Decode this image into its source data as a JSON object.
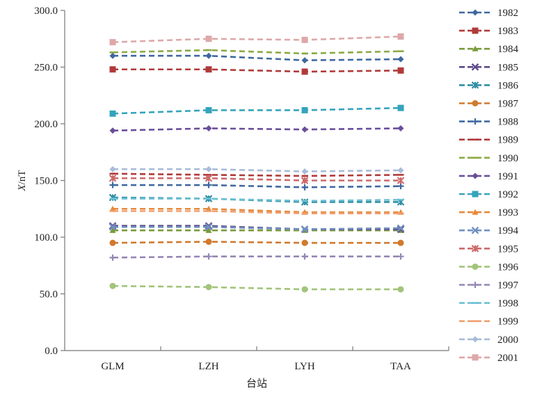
{
  "chart_data": {
    "type": "line",
    "title": "",
    "categories": [
      "GLM",
      "LZH",
      "LYH",
      "TAA"
    ],
    "xlabel": "台站",
    "ylabel_italic": "X",
    "ylabel_rest": "/nT",
    "ylim": [
      0,
      300
    ],
    "yticks": [
      0,
      50,
      100,
      150,
      200,
      250,
      300
    ],
    "ytick_labels": [
      "0.0",
      "50.0",
      "100.0",
      "150.0",
      "200.0",
      "250.0",
      "300.0"
    ],
    "legend_position": "right",
    "series": [
      {
        "name": "1982",
        "color": "#3f68a0",
        "marker": "diamond",
        "values": [
          260,
          260,
          256,
          257
        ]
      },
      {
        "name": "1983",
        "color": "#b03a3a",
        "marker": "square",
        "values": [
          248,
          248,
          246,
          247
        ]
      },
      {
        "name": "1984",
        "color": "#7a9a3a",
        "marker": "triangle",
        "values": [
          106,
          106,
          106,
          106
        ]
      },
      {
        "name": "1985",
        "color": "#5e4a8a",
        "marker": "x",
        "values": [
          110,
          110,
          107,
          107
        ]
      },
      {
        "name": "1986",
        "color": "#2e8ea4",
        "marker": "xstar",
        "values": [
          135,
          134,
          131,
          131
        ]
      },
      {
        "name": "1987",
        "color": "#d07a2e",
        "marker": "circle",
        "values": [
          95,
          96,
          95,
          95
        ]
      },
      {
        "name": "1988",
        "color": "#3f68a0",
        "marker": "plus",
        "values": [
          146,
          146,
          144,
          145
        ]
      },
      {
        "name": "1989",
        "color": "#b03a3a",
        "marker": "dash",
        "values": [
          156,
          155,
          154,
          155
        ]
      },
      {
        "name": "1990",
        "color": "#8aaa44",
        "marker": "dash",
        "values": [
          263,
          265,
          262,
          264
        ]
      },
      {
        "name": "1991",
        "color": "#6a4e9a",
        "marker": "diamond",
        "values": [
          194,
          196,
          195,
          196
        ]
      },
      {
        "name": "1992",
        "color": "#34a4bc",
        "marker": "square",
        "values": [
          209,
          212,
          212,
          214
        ]
      },
      {
        "name": "1993",
        "color": "#e8883a",
        "marker": "triangle",
        "values": [
          125,
          125,
          122,
          122
        ]
      },
      {
        "name": "1994",
        "color": "#7090c0",
        "marker": "x",
        "values": [
          109,
          109,
          107,
          108
        ]
      },
      {
        "name": "1995",
        "color": "#cc6a6a",
        "marker": "xstar",
        "values": [
          152,
          152,
          150,
          150
        ]
      },
      {
        "name": "1996",
        "color": "#a2c47a",
        "marker": "circle",
        "values": [
          57,
          56,
          54,
          54
        ]
      },
      {
        "name": "1997",
        "color": "#9486b4",
        "marker": "plus",
        "values": [
          82,
          83,
          83,
          83
        ]
      },
      {
        "name": "1998",
        "color": "#6cc0d4",
        "marker": "dash",
        "values": [
          134,
          134,
          132,
          133
        ]
      },
      {
        "name": "1999",
        "color": "#f0a070",
        "marker": "dash",
        "values": [
          123,
          123,
          121,
          121
        ]
      },
      {
        "name": "2000",
        "color": "#a8bcd8",
        "marker": "diamond",
        "values": [
          160,
          160,
          158,
          159
        ]
      },
      {
        "name": "2001",
        "color": "#dea8a8",
        "marker": "square",
        "values": [
          272,
          275,
          274,
          277
        ]
      }
    ]
  }
}
